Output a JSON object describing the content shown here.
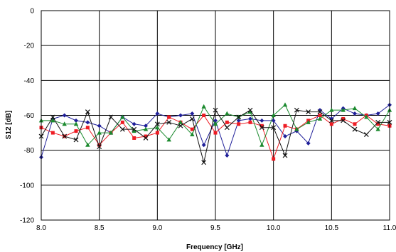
{
  "chart_data": {
    "type": "line",
    "title": "",
    "xlabel": "Frequency [GHz]",
    "ylabel": "S12 [dB]",
    "xlim": [
      8.0,
      11.0
    ],
    "ylim": [
      -120,
      0
    ],
    "xticks": [
      "8.0",
      "8.5",
      "9.0",
      "9.5",
      "10.0",
      "10.5",
      "11.0"
    ],
    "yticks": [
      "0",
      "-20",
      "-40",
      "-60",
      "-80",
      "-100",
      "-120"
    ],
    "grid": true,
    "reference_line": -60,
    "legend": "none",
    "x": [
      8.0,
      8.1,
      8.2,
      8.3,
      8.4,
      8.5,
      8.6,
      8.7,
      8.8,
      8.9,
      9.0,
      9.1,
      9.2,
      9.3,
      9.4,
      9.5,
      9.6,
      9.7,
      9.8,
      9.9,
      10.0,
      10.1,
      10.2,
      10.3,
      10.4,
      10.5,
      10.6,
      10.7,
      10.8,
      10.9,
      11.0
    ],
    "series": [
      {
        "color": "#1f1f99",
        "marker": "diamond",
        "values": [
          -84,
          -62,
          -60,
          -63,
          -64,
          -66,
          -70,
          -61,
          -65,
          -66,
          -59,
          -61,
          -60,
          -59,
          -77,
          -63,
          -83,
          -63,
          -62,
          -63,
          -63,
          -72,
          -69,
          -76,
          -57,
          -62,
          -56,
          -59,
          -60,
          -59,
          -54
        ]
      },
      {
        "color": "#ee1c24",
        "marker": "square",
        "values": [
          -67,
          -70,
          -72,
          -69,
          -67,
          -77,
          -70,
          -64,
          -73,
          -72,
          -70,
          -61,
          -64,
          -68,
          -60,
          -70,
          -64,
          -65,
          -64,
          -66,
          -85,
          -66,
          -68,
          -63,
          -60,
          -65,
          -62,
          -65,
          -60,
          -65,
          -66
        ]
      },
      {
        "color": "#1b8a2e",
        "marker": "triangle",
        "values": [
          -63,
          -63,
          -65,
          -65,
          -77,
          -70,
          -70,
          -61,
          -69,
          -68,
          -67,
          -74,
          -64,
          -71,
          -55,
          -65,
          -59,
          -61,
          -58,
          -77,
          -60,
          -54,
          -68,
          -64,
          -62,
          -57,
          -57,
          -56,
          -61,
          -68,
          -57
        ]
      },
      {
        "color": "#111111",
        "marker": "x",
        "values": [
          -72,
          -61,
          -72,
          -74,
          -58,
          -78,
          -61,
          -68,
          -68,
          -73,
          -65,
          -64,
          -66,
          -62,
          -87,
          -57,
          -67,
          -61,
          -57,
          -67,
          -67,
          -83,
          -57,
          -58,
          -58,
          -63,
          -63,
          -68,
          -71,
          -64,
          -64
        ]
      }
    ]
  }
}
